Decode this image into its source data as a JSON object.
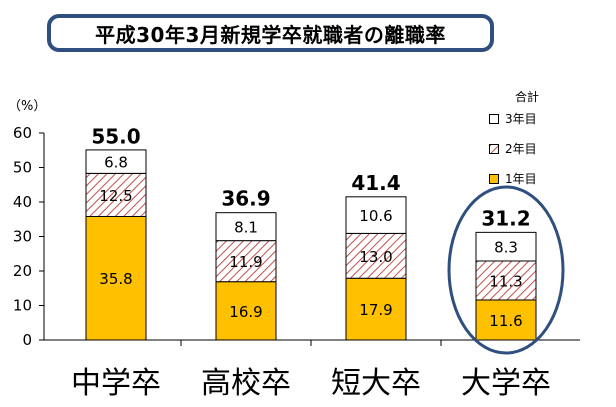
{
  "chart_data": {
    "type": "bar",
    "stacked": true,
    "title": "平成30年3月新規学卒就職者の離職率",
    "ylabel": "（%）",
    "ylim": [
      0,
      60
    ],
    "yticks": [
      0,
      10,
      20,
      30,
      40,
      50,
      60
    ],
    "categories": [
      "中学卒",
      "高校卒",
      "短大卒",
      "大学卒"
    ],
    "series": [
      {
        "name": "1年目",
        "values": [
          35.8,
          16.9,
          17.9,
          11.6
        ],
        "color": "#ffc000",
        "pattern": "solid"
      },
      {
        "name": "2年目",
        "values": [
          12.5,
          11.9,
          13.0,
          11.3
        ],
        "color": "#c0504d",
        "pattern": "hatch"
      },
      {
        "name": "3年目",
        "values": [
          6.8,
          8.1,
          10.6,
          8.3
        ],
        "color": "#ffffff",
        "pattern": "solid"
      }
    ],
    "totals": [
      "55.0",
      "36.9",
      "41.4",
      "31.2"
    ],
    "segment_labels": [
      [
        "35.8",
        "12.5",
        "6.8"
      ],
      [
        "16.9",
        "11.9",
        "8.1"
      ],
      [
        "17.9",
        "13.0",
        "10.6"
      ],
      [
        "11.6",
        "11.3",
        "8.3"
      ]
    ],
    "legend": {
      "title": "合計",
      "position": "right",
      "entries": [
        "3年目",
        "2年目",
        "1年目"
      ]
    },
    "highlighted_category": "大学卒",
    "highlight_color": "#2f4f7f",
    "grid": false
  }
}
